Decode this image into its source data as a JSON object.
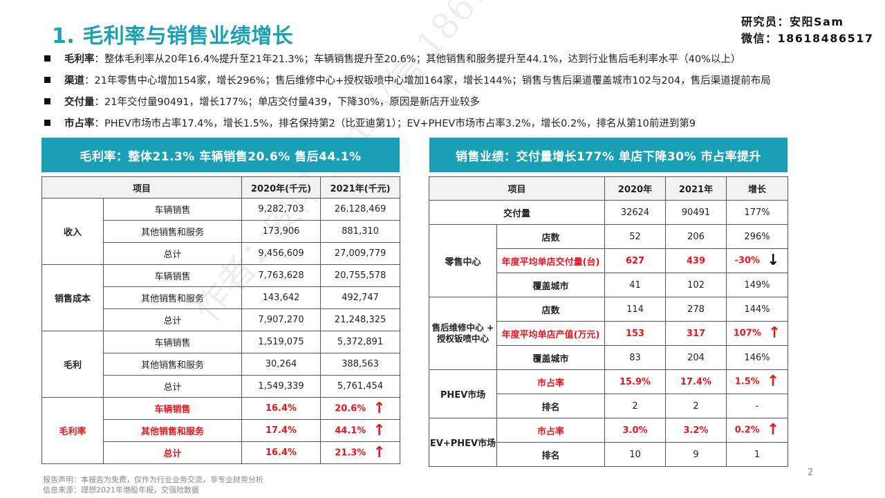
{
  "title": "1. 毛利率与销售业绩增长",
  "researcher": {
    "line1": "研究员：安阳Sam",
    "line2": "微信：18618486517"
  },
  "bullets": [
    {
      "label": "毛利率",
      "text": "：整体毛利率从20年16.4%提升至21年21.3%；车辆销售提升至20.6%；其他销售和服务提升至44.1%，达到行业售后毛利率水平（40%以上）"
    },
    {
      "label": "渠道",
      "text": "：21年零售中心增加154家，增长296%；售后维修中心+授权钣喷中心增加164家，增长144%；销售与售后渠道覆盖城市102与204，售后渠道提前布局"
    },
    {
      "label": "交付量",
      "text": "：21年交付量90491，增长177%；单店交付量439，下降30%，原因是新店开业较多"
    },
    {
      "label": "市占率",
      "text": "：PHEV市场市占率17.4%，增长1.5%，排名保持第2（比亚迪第1）；EV+PHEV市场市占率3.2%，增长0.2%，排名从第10前进到第9"
    }
  ],
  "left_banner": "毛利率：整体21.3% 车辆销售20.6%   售后44.1%",
  "right_banner": "销售业绩：交付量增长177% 单店下降30% 市占率提升",
  "left_table": {
    "headers": [
      "项目",
      "2020年(千元)",
      "2021年(千元)"
    ],
    "revenue": {
      "group": "收入",
      "rows": [
        [
          "车辆销售",
          "9,282,703",
          "26,128,469"
        ],
        [
          "其他销售和服务",
          "173,906",
          "881,310"
        ],
        [
          "总计",
          "9,456,609",
          "27,009,779"
        ]
      ]
    },
    "cost": {
      "group": "销售成本",
      "rows": [
        [
          "车辆销售",
          "7,763,628",
          "20,755,578"
        ],
        [
          "其他销售和服务",
          "143,642",
          "492,747"
        ],
        [
          "总计",
          "7,907,270",
          "21,248,325"
        ]
      ]
    },
    "profit": {
      "group": "毛利",
      "rows": [
        [
          "车辆销售",
          "1,519,075",
          "5,372,891"
        ],
        [
          "其他销售和服务",
          "30,264",
          "388,563"
        ],
        [
          "总计",
          "1,549,339",
          "5,761,454"
        ]
      ]
    },
    "margin": {
      "group": "毛利率",
      "rows": [
        [
          "车辆销售",
          "16.4%",
          "20.6%"
        ],
        [
          "其他销售和服务",
          "17.4%",
          "44.1%"
        ],
        [
          "总计",
          "16.4%",
          "21.3%"
        ]
      ]
    }
  },
  "right_table": {
    "headers": [
      "项目",
      "2020年",
      "2021年",
      "增长"
    ],
    "delivery": [
      "交付量",
      "32624",
      "90491",
      "177%"
    ],
    "retail": {
      "group": "零售中心",
      "stores": [
        "店数",
        "52",
        "206",
        "296%"
      ],
      "avg": [
        "年度平均单店交付量(台)",
        "627",
        "439",
        "-30%"
      ],
      "cities": [
        "覆盖城市",
        "41",
        "102",
        "149%"
      ]
    },
    "service": {
      "group": "售后维修中心 + 授权钣喷中心",
      "stores": [
        "店数",
        "114",
        "278",
        "144%"
      ],
      "avg": [
        "年度平均单店产值(万元)",
        "153",
        "317",
        "107%"
      ],
      "cities": [
        "覆盖城市",
        "83",
        "204",
        "146%"
      ]
    },
    "phev": {
      "group": "PHEV市场",
      "share": [
        "市占率",
        "15.9%",
        "17.4%",
        "1.5%"
      ],
      "rank": [
        "排名",
        "2",
        "2",
        "-"
      ]
    },
    "ev": {
      "group": "EV+PHEV市场",
      "share": [
        "市占率",
        "3.0%",
        "3.2%",
        "0.2%"
      ],
      "rank": [
        "排名",
        "10",
        "9",
        "1"
      ]
    }
  },
  "arrows": {
    "up": "↑",
    "down": "↓"
  },
  "footer": {
    "line1": "报告声明：本报告为免费，仅作为行业业务交流，非专业财务分析",
    "line2": "信息来源：理想2021年港股年报，交强险数据"
  },
  "page_number": "2",
  "watermark": "作者：安阳Sam V信 18618486517"
}
